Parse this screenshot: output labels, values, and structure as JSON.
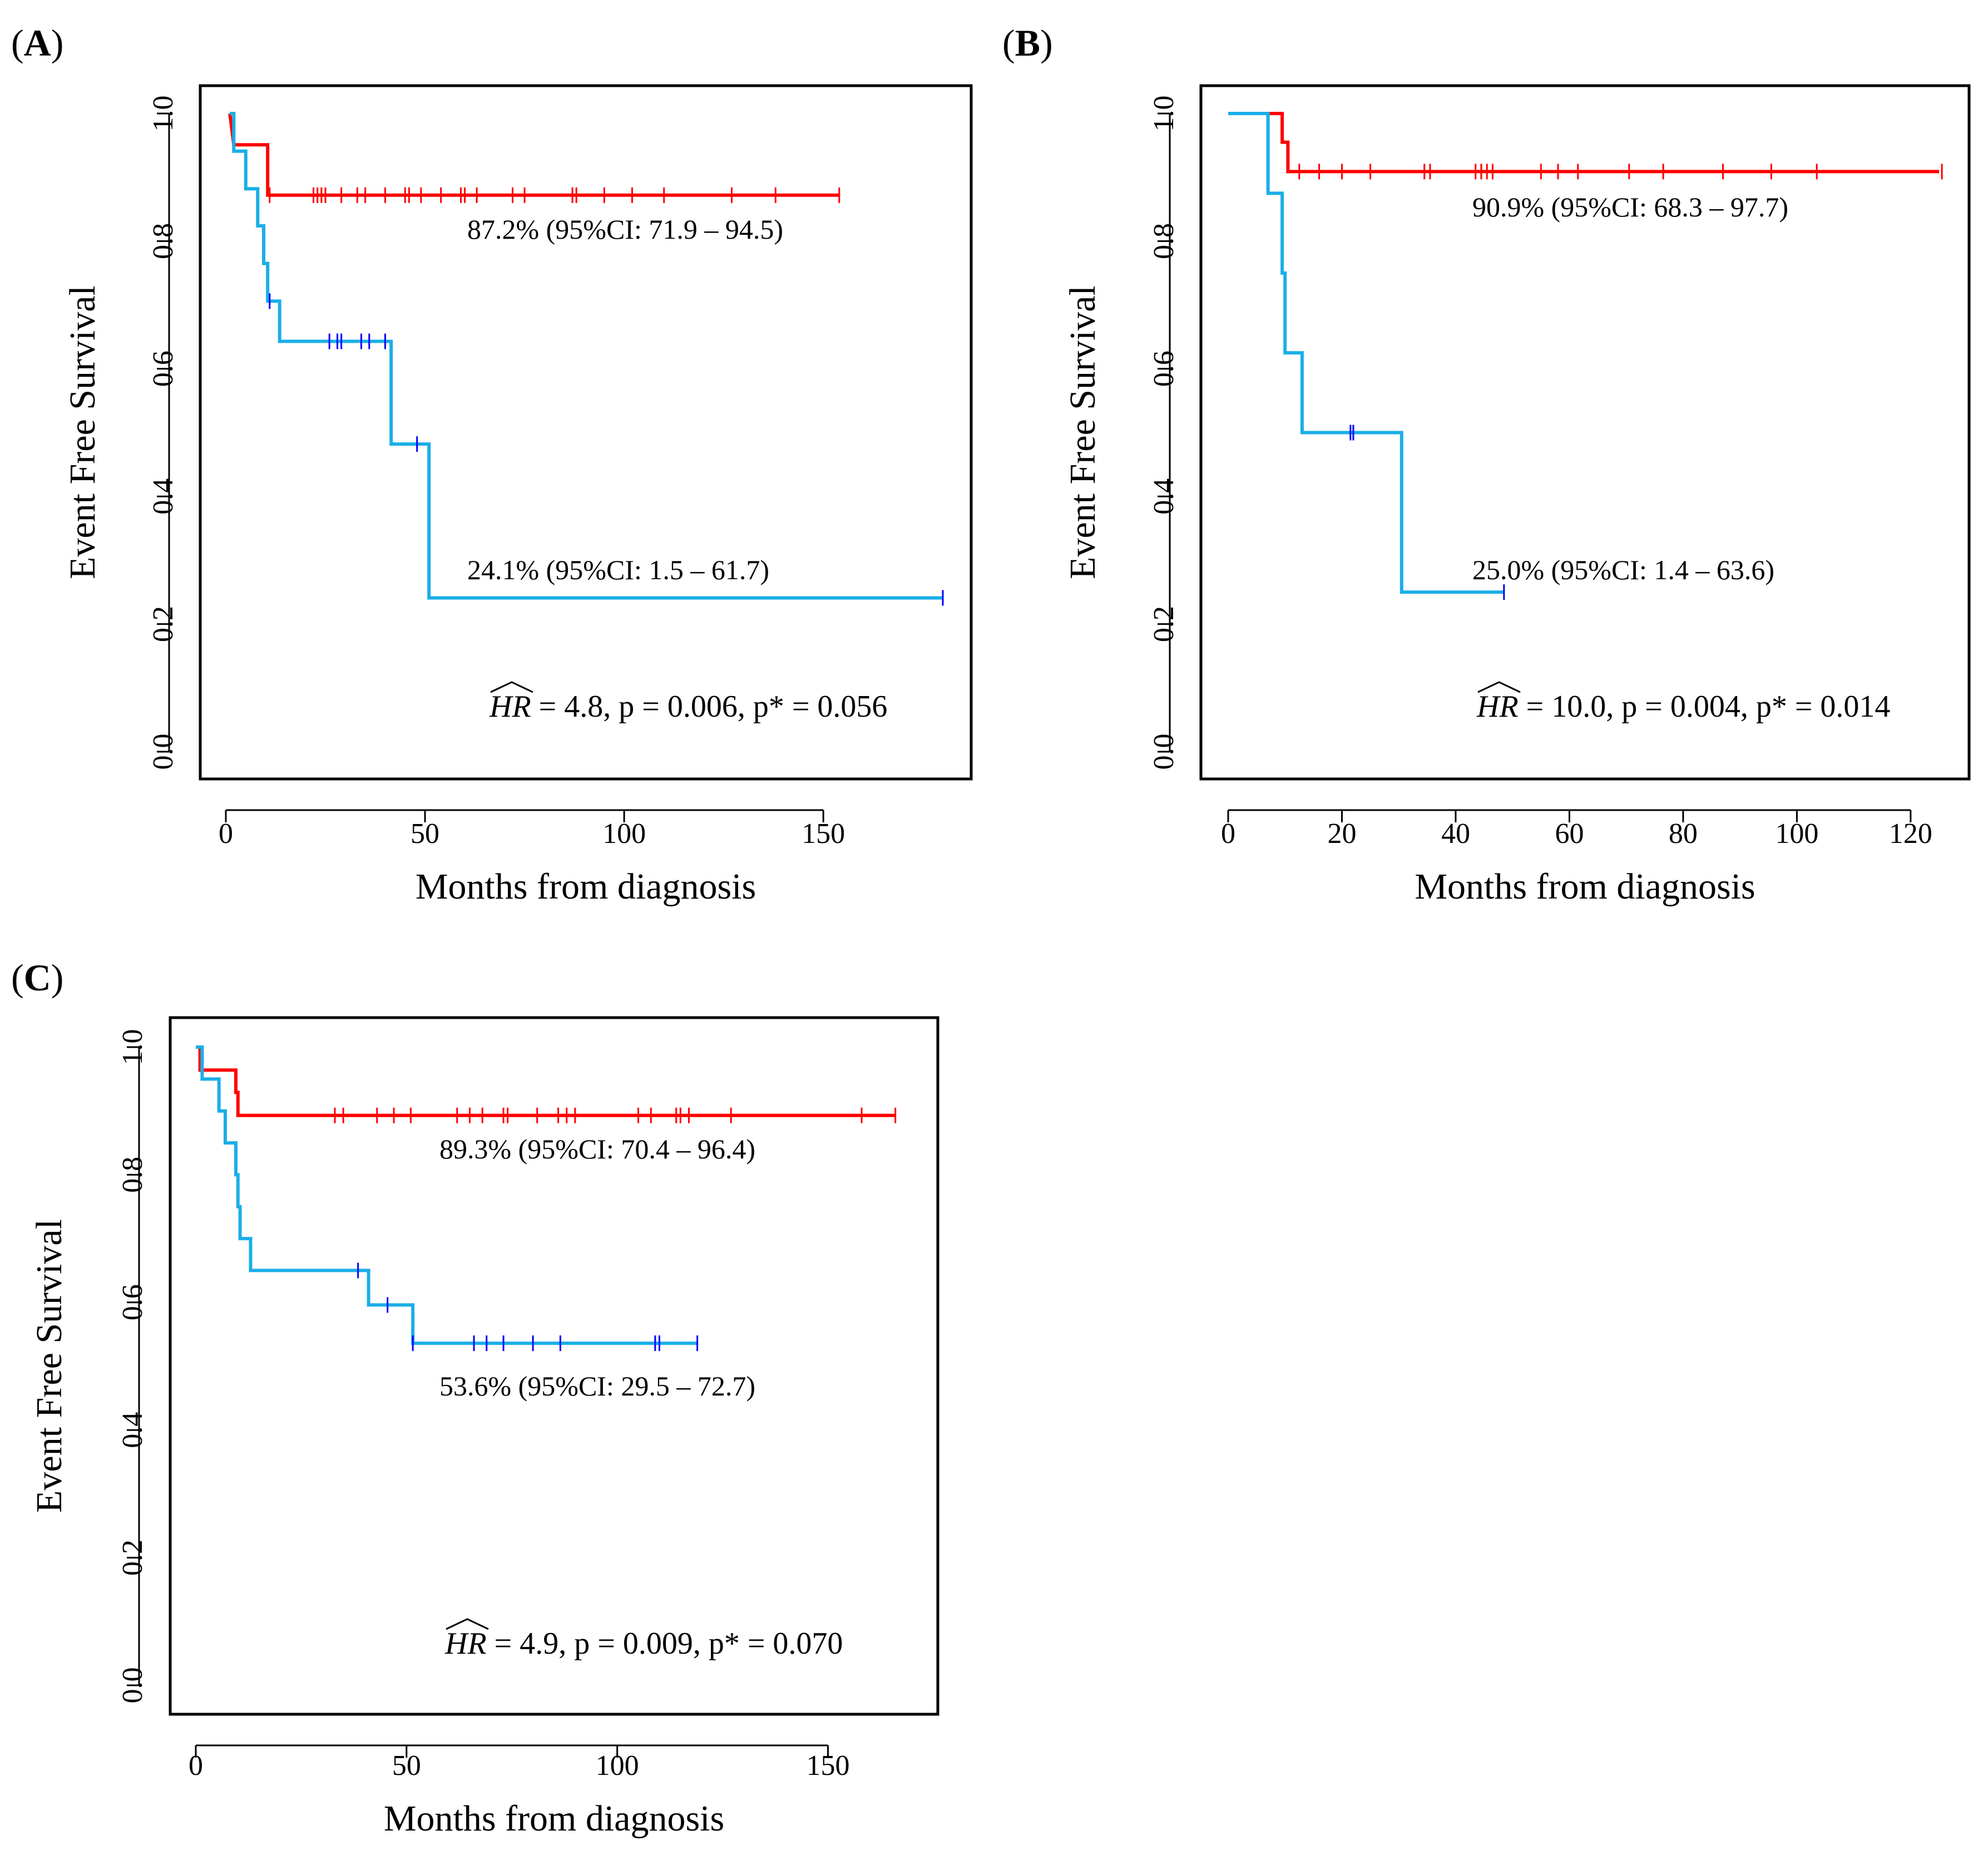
{
  "figure": {
    "colors": {
      "red": "#ff0000",
      "cyan": "#1aaee8",
      "blue": "#0000ff",
      "axis": "#000000"
    }
  },
  "chart_data": [
    {
      "panel": "A",
      "type": "line",
      "title": "",
      "xlabel": "Months from diagnosis",
      "ylabel": "Event Free Survival",
      "xlim": [
        0,
        180
      ],
      "ylim": [
        0,
        1
      ],
      "xticks": [
        0,
        50,
        100,
        150
      ],
      "yticks": [
        0.0,
        0.2,
        0.4,
        0.6,
        0.8,
        1.0
      ],
      "ytick_labels": [
        "0.0",
        "0.2",
        "0.4",
        "0.6",
        "0.8",
        "1.0"
      ],
      "series": [
        {
          "name": "red group",
          "color": "#ff0000",
          "steps": [
            [
              1,
              1.0
            ],
            [
              2,
              0.951
            ],
            [
              10.5,
              0.951
            ],
            [
              10.5,
              0.872
            ],
            [
              154,
              0.872
            ]
          ],
          "censor": [
            11,
            22,
            23,
            24,
            25,
            29,
            33,
            35,
            40,
            45,
            46,
            49,
            54,
            59,
            60,
            63,
            72,
            75,
            87,
            88,
            95,
            102,
            110,
            127,
            138,
            154
          ],
          "annotation": "87.2% (95%CI: 71.9 – 94.5)"
        },
        {
          "name": "blue group",
          "color": "#1aaee8",
          "steps": [
            [
              1,
              1.0
            ],
            [
              2,
              1.0
            ],
            [
              2,
              0.941
            ],
            [
              5,
              0.941
            ],
            [
              5,
              0.882
            ],
            [
              8,
              0.882
            ],
            [
              8,
              0.824
            ],
            [
              9.5,
              0.824
            ],
            [
              9.5,
              0.765
            ],
            [
              10.5,
              0.765
            ],
            [
              10.5,
              0.706
            ],
            [
              13.5,
              0.706
            ],
            [
              13.5,
              0.643
            ],
            [
              41.5,
              0.643
            ],
            [
              41.5,
              0.482
            ],
            [
              51,
              0.482
            ],
            [
              51,
              0.241
            ],
            [
              180,
              0.241
            ]
          ],
          "censor": [
            11,
            26,
            28,
            29,
            34,
            36,
            40,
            48,
            180
          ],
          "censor_color": "#0000ff",
          "annotation": "24.1% (95%CI: 1.5 – 61.7)"
        }
      ],
      "hr_label": "HR",
      "hr_text": " = 4.8, p = 0.006, p* = 0.056"
    },
    {
      "panel": "B",
      "type": "line",
      "title": "",
      "xlabel": "Months from diagnosis",
      "ylabel": "Event Free Survival",
      "xlim": [
        0,
        125
      ],
      "ylim": [
        0,
        1
      ],
      "xticks": [
        0,
        20,
        40,
        60,
        80,
        100,
        120
      ],
      "yticks": [
        0.0,
        0.2,
        0.4,
        0.6,
        0.8,
        1.0
      ],
      "ytick_labels": [
        "0.0",
        "0.2",
        "0.4",
        "0.6",
        "0.8",
        "1.0"
      ],
      "series": [
        {
          "name": "red group",
          "color": "#ff0000",
          "steps": [
            [
              0,
              1.0
            ],
            [
              9.5,
              1.0
            ],
            [
              9.5,
              0.955
            ],
            [
              10.5,
              0.955
            ],
            [
              10.5,
              0.909
            ],
            [
              125,
              0.909
            ]
          ],
          "censor": [
            12.5,
            16,
            20,
            25,
            34.5,
            35.5,
            43.5,
            44.5,
            45.5,
            46.5,
            55,
            58,
            61.5,
            70.5,
            76.5,
            87,
            95.5,
            103.5,
            125.5
          ],
          "annotation": "90.9% (95%CI: 68.3 – 97.7)"
        },
        {
          "name": "blue group",
          "color": "#1aaee8",
          "steps": [
            [
              0,
              1.0
            ],
            [
              7,
              1.0
            ],
            [
              7,
              0.875
            ],
            [
              9.5,
              0.875
            ],
            [
              9.5,
              0.75
            ],
            [
              10,
              0.75
            ],
            [
              10,
              0.625
            ],
            [
              13,
              0.625
            ],
            [
              13,
              0.5
            ],
            [
              30.5,
              0.5
            ],
            [
              30.5,
              0.25
            ],
            [
              48.5,
              0.25
            ]
          ],
          "censor": [
            21.5,
            22,
            48.5
          ],
          "censor_color": "#0000ff",
          "annotation": "25.0% (95%CI: 1.4 – 63.6)"
        }
      ],
      "hr_label": "HR",
      "hr_text": " = 10.0, p = 0.004, p* = 0.014"
    },
    {
      "panel": "C",
      "type": "line",
      "title": "",
      "xlabel": "Months from diagnosis",
      "ylabel": "Event Free Survival",
      "xlim": [
        0,
        170
      ],
      "ylim": [
        0,
        1
      ],
      "xticks": [
        0,
        50,
        100,
        150
      ],
      "yticks": [
        0.0,
        0.2,
        0.4,
        0.6,
        0.8,
        1.0
      ],
      "ytick_labels": [
        "0.0",
        "0.2",
        "0.4",
        "0.6",
        "0.8",
        "1.0"
      ],
      "series": [
        {
          "name": "red group",
          "color": "#ff0000",
          "steps": [
            [
              0,
              1.0
            ],
            [
              1,
              1.0
            ],
            [
              1,
              0.964
            ],
            [
              9.5,
              0.964
            ],
            [
              9.5,
              0.929
            ],
            [
              10,
              0.929
            ],
            [
              10,
              0.893
            ],
            [
              166,
              0.893
            ]
          ],
          "censor": [
            33,
            35,
            43,
            47,
            51,
            62,
            65,
            68,
            73,
            74,
            81,
            86,
            88,
            90,
            105,
            108,
            114,
            115,
            117,
            127,
            158,
            166
          ],
          "annotation": "89.3% (95%CI: 70.4 – 96.4)"
        },
        {
          "name": "blue group",
          "color": "#1aaee8",
          "steps": [
            [
              0,
              1.0
            ],
            [
              1.5,
              1.0
            ],
            [
              1.5,
              0.95
            ],
            [
              5.5,
              0.95
            ],
            [
              5.5,
              0.9
            ],
            [
              7,
              0.9
            ],
            [
              7,
              0.85
            ],
            [
              9.5,
              0.85
            ],
            [
              9.5,
              0.8
            ],
            [
              10,
              0.8
            ],
            [
              10,
              0.75
            ],
            [
              10.5,
              0.75
            ],
            [
              10.5,
              0.7
            ],
            [
              13,
              0.7
            ],
            [
              13,
              0.65
            ],
            [
              41,
              0.65
            ],
            [
              41,
              0.596
            ],
            [
              51.5,
              0.596
            ],
            [
              51.5,
              0.536
            ],
            [
              119,
              0.536
            ]
          ],
          "censor": [
            38.5,
            45.5,
            51.5,
            66,
            69,
            73,
            80,
            86.5,
            109,
            110,
            119
          ],
          "censor_color": "#0000ff",
          "annotation": "53.6% (95%CI: 29.5 – 72.7)"
        }
      ],
      "hr_label": "HR",
      "hr_text": " = 4.9, p = 0.009, p* = 0.070"
    }
  ]
}
